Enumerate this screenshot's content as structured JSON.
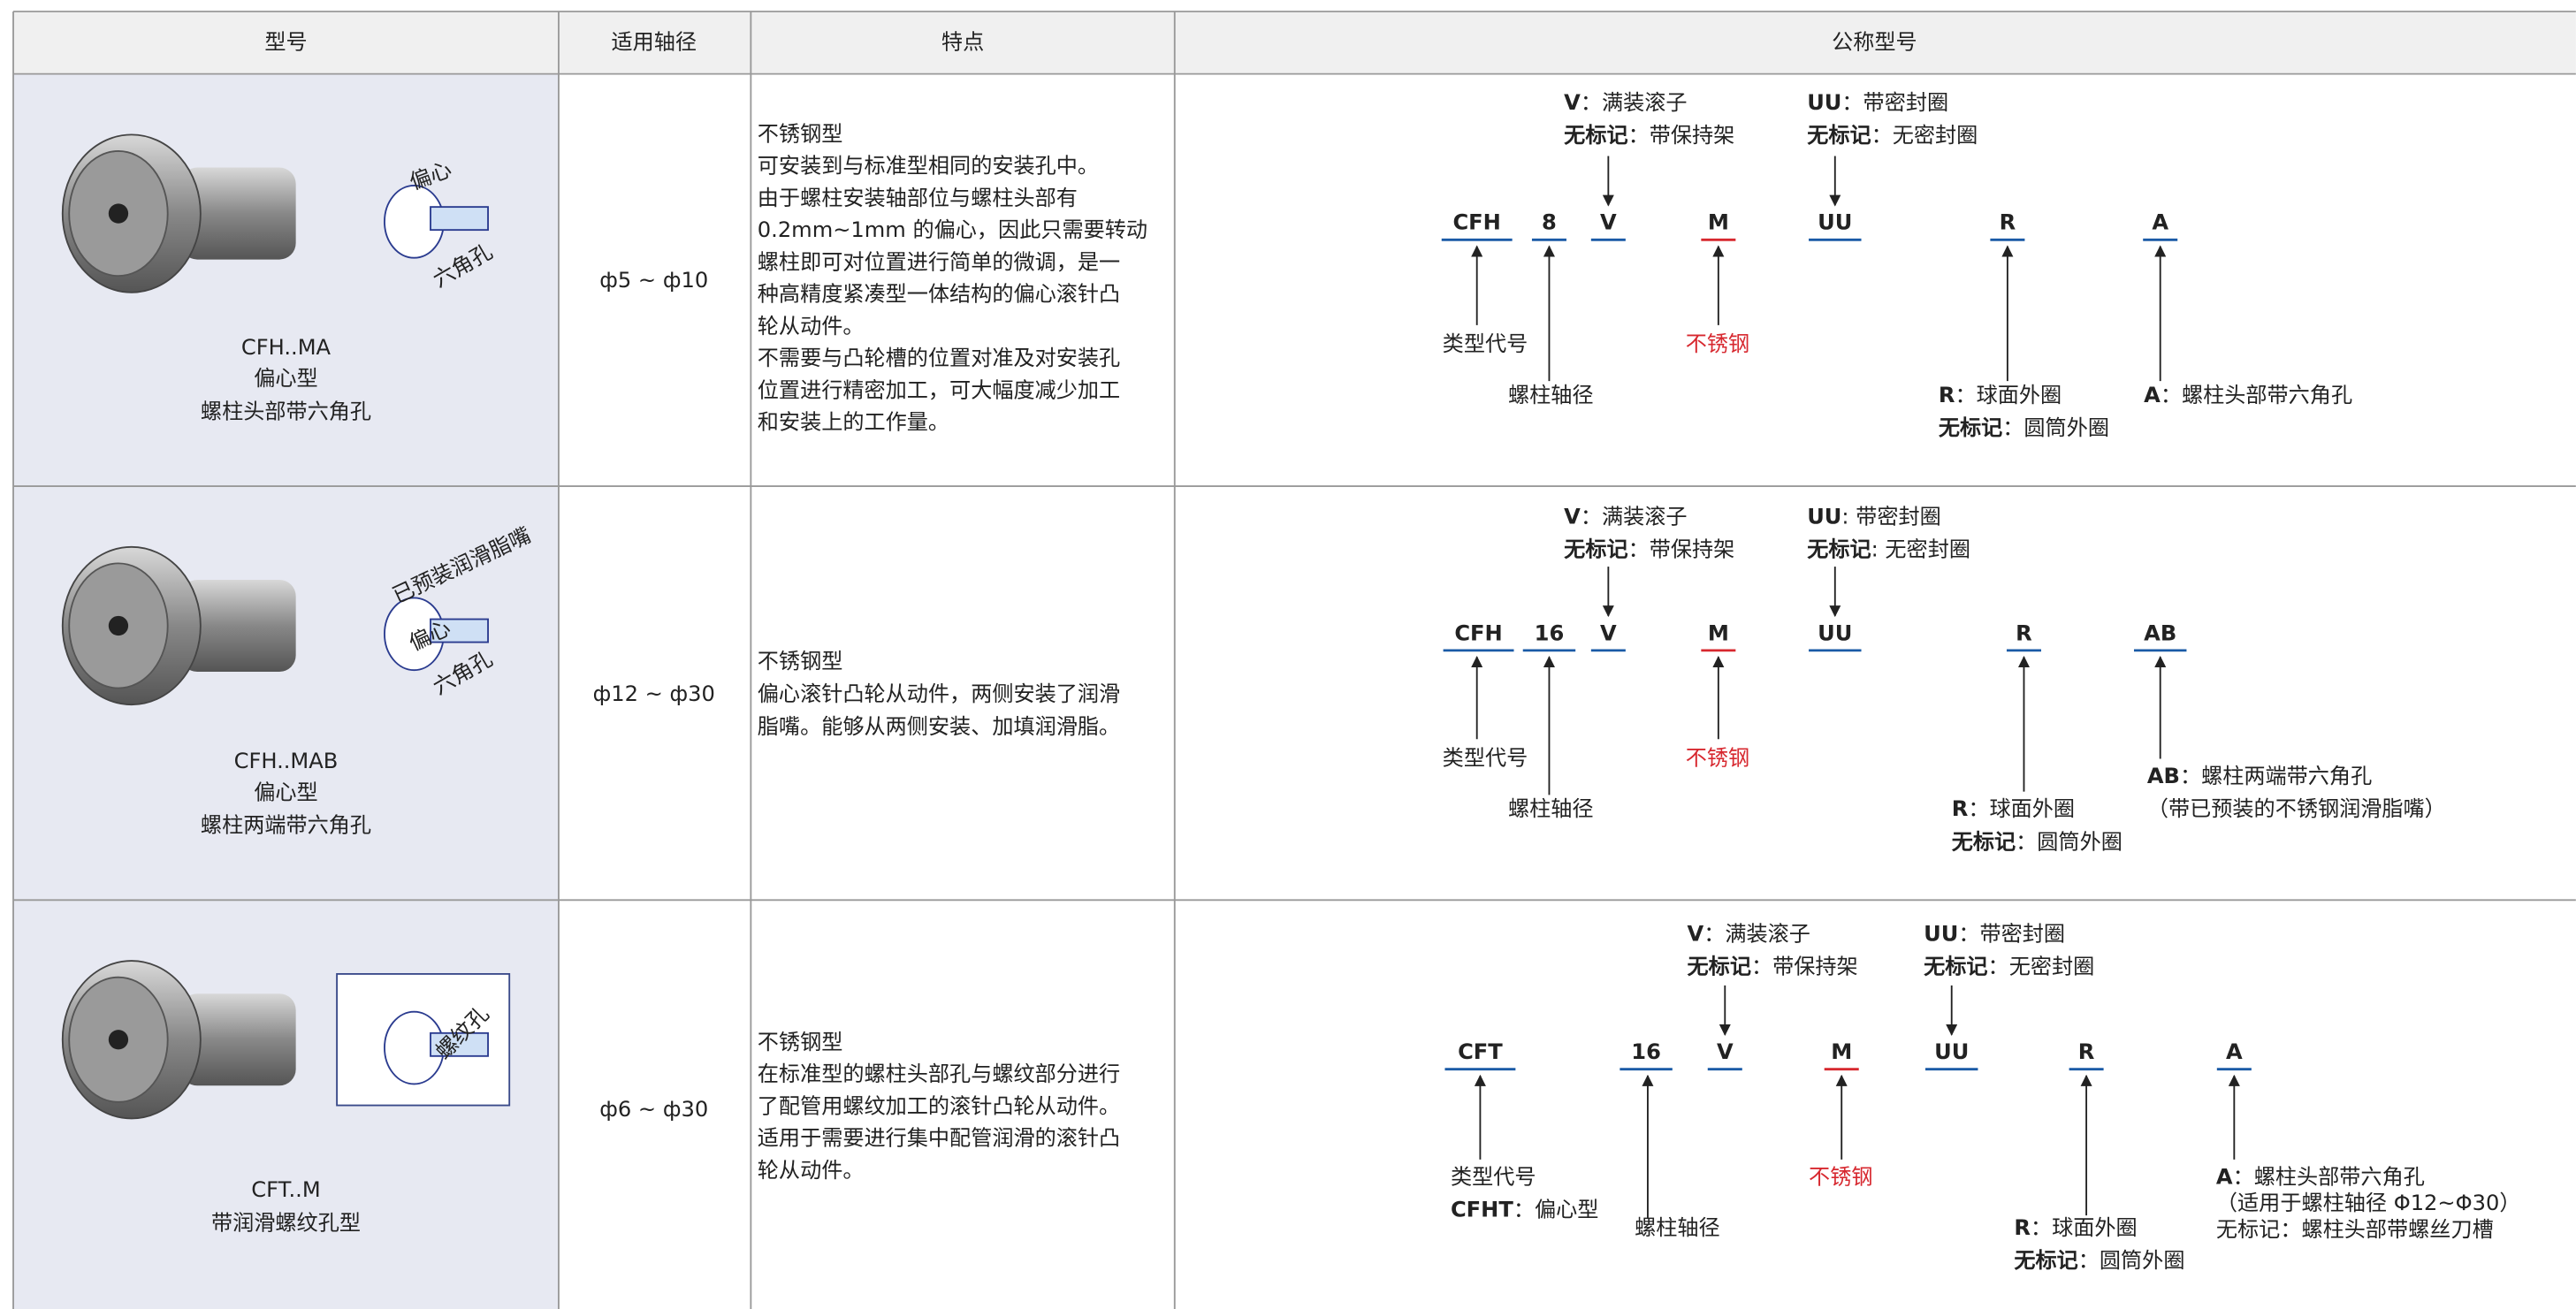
{
  "table": {
    "headers": [
      "型号",
      "适用轴径",
      "特点",
      "公称型号"
    ],
    "rows": [
      {
        "model": [
          "CFH..MA",
          "偏心型",
          "螺柱头部带六角孔"
        ],
        "image_labels": [
          "偏心",
          "六角孔"
        ],
        "shaft": "ф5 ~ ф10",
        "features": [
          "不锈钢型",
          "可安装到与标准型相同的安装孔中。",
          "由于螺柱安装轴部位与螺柱头部有",
          "0.2mm~1mm 的偏心，因此只需要转动",
          "螺柱即可对位置进行简单的微调，是一",
          "种高精度紧凑型一体结构的偏心滚针凸",
          "轮从动件。",
          "不需要与凸轮槽的位置对准及对安装孔",
          "位置进行精密加工，可大幅度减少加工",
          "和安装上的工作量。"
        ],
        "codes": [
          "CFH",
          "8",
          "V",
          "M",
          "UU",
          "R",
          "A"
        ],
        "notes": [
          {
            "lines": [
              {
                "key": "V",
                "text": "：满装滚子"
              },
              {
                "key": "无标记",
                "text": "：带保持架"
              }
            ]
          },
          {
            "lines": [
              {
                "key": "UU",
                "text": "：带密封圈"
              },
              {
                "key": "无标记",
                "text": "：无密封圈"
              }
            ]
          },
          {
            "lines": [
              {
                "text": "类型代号"
              }
            ]
          },
          {
            "lines": [
              {
                "text": "螺柱轴径"
              }
            ]
          },
          {
            "lines": [
              {
                "text": "不锈钢"
              }
            ]
          },
          {
            "lines": [
              {
                "key": "R",
                "text": "：球面外圈"
              },
              {
                "key": "无标记",
                "text": "：圆筒外圈"
              }
            ]
          },
          {
            "lines": [
              {
                "key": "A",
                "text": "：螺柱头部带六角孔"
              }
            ]
          }
        ]
      },
      {
        "model": [
          "CFH..MAB",
          "偏心型",
          "螺柱两端带六角孔"
        ],
        "image_labels": [
          "已预装润滑脂嘴",
          "偏心",
          "六角孔"
        ],
        "shaft": "ф12 ~ ф30",
        "features": [
          "不锈钢型",
          "偏心滚针凸轮从动件，两侧安装了润滑",
          "脂嘴。能够从两侧安装、加填润滑脂。"
        ],
        "codes": [
          "CFH",
          "16",
          "V",
          "M",
          "UU",
          "R",
          "AB"
        ],
        "notes": [
          {
            "lines": [
              {
                "key": "V",
                "text": "：满装滚子"
              },
              {
                "key": "无标记",
                "text": "：带保持架"
              }
            ]
          },
          {
            "lines": [
              {
                "key": "UU",
                "text": ": 带密封圈"
              },
              {
                "key": "无标记",
                "text": ": 无密封圈"
              }
            ]
          },
          {
            "lines": [
              {
                "text": "类型代号"
              }
            ]
          },
          {
            "lines": [
              {
                "text": "螺柱轴径"
              }
            ]
          },
          {
            "lines": [
              {
                "text": "不锈钢"
              }
            ]
          },
          {
            "lines": [
              {
                "key": "R",
                "text": "：球面外圈"
              },
              {
                "key": "无标记",
                "text": "：圆筒外圈"
              }
            ]
          },
          {
            "lines": [
              {
                "key": "AB",
                "text": "：螺柱两端带六角孔"
              },
              {
                "text": "（带已预装的不锈钢润滑脂嘴）"
              }
            ]
          }
        ]
      },
      {
        "model": [
          "CFT..M",
          "带润滑螺纹孔型"
        ],
        "image_labels": [
          "螺纹孔"
        ],
        "shaft": "ф6 ~ ф30",
        "features": [
          "不锈钢型",
          "在标准型的螺柱头部孔与螺纹部分进行",
          "了配管用螺纹加工的滚针凸轮从动件。",
          "适用于需要进行集中配管润滑的滚针凸",
          "轮从动件。"
        ],
        "codes": [
          "CFT",
          "16",
          "V",
          "M",
          "UU",
          "R",
          "A"
        ],
        "notes": [
          {
            "lines": [
              {
                "key": "V",
                "text": "：满装滚子"
              },
              {
                "key": "无标记",
                "text": "：带保持架"
              }
            ]
          },
          {
            "lines": [
              {
                "key": "UU",
                "text": "：带密封圈"
              },
              {
                "key": "无标记",
                "text": "：无密封圈"
              }
            ]
          },
          {
            "lines": [
              {
                "text": "类型代号"
              },
              {
                "key": "CFHT",
                "text": "：偏心型"
              }
            ]
          },
          {
            "lines": [
              {
                "text": "螺柱轴径"
              }
            ]
          },
          {
            "lines": [
              {
                "text": "不锈钢"
              }
            ]
          },
          {
            "lines": [
              {
                "key": "R",
                "text": "：球面外圈"
              },
              {
                "key": "无标记",
                "text": "：圆筒外圈"
              }
            ]
          },
          {
            "lines": [
              {
                "key": "A",
                "text": "：螺柱头部带六角孔"
              },
              {
                "text": "（适用于螺柱轴径 Φ12~Φ30）"
              },
              {
                "text": "无标记：螺柱头部带螺丝刀槽"
              }
            ]
          }
        ]
      }
    ]
  }
}
